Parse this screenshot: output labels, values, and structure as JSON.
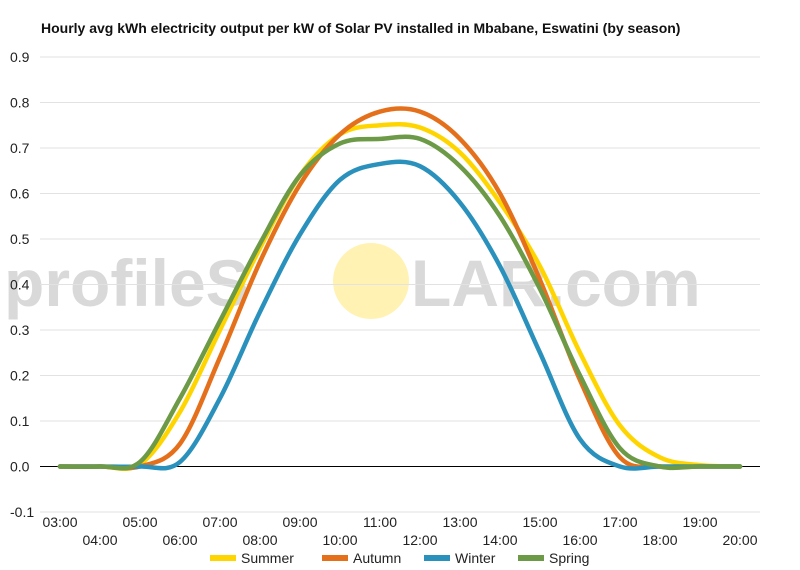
{
  "chart_data": {
    "type": "line",
    "title": "Hourly avg kWh electricity output per kW of Solar PV installed in Mbabane, Eswatini (by season)",
    "xlabel": "",
    "ylabel": "",
    "x_ticks": [
      "03:00",
      "04:00",
      "05:00",
      "06:00",
      "07:00",
      "08:00",
      "09:00",
      "10:00",
      "11:00",
      "12:00",
      "13:00",
      "14:00",
      "15:00",
      "16:00",
      "17:00",
      "18:00",
      "19:00",
      "20:00"
    ],
    "x_range": [
      "02:30",
      "20:30"
    ],
    "ylim": [
      -0.1,
      0.9
    ],
    "y_ticks": [
      "-0.1",
      "0.0",
      "0.1",
      "0.2",
      "0.3",
      "0.4",
      "0.5",
      "0.6",
      "0.7",
      "0.8",
      "0.9"
    ],
    "grid": "horizontal",
    "legend_position": "bottom",
    "series": [
      {
        "name": "Summer",
        "color": "#ffd500",
        "x": [
          "03:00",
          "04:00",
          "05:00",
          "06:00",
          "07:00",
          "08:00",
          "09:00",
          "10:00",
          "11:00",
          "12:00",
          "13:00",
          "14:00",
          "15:00",
          "16:00",
          "17:00",
          "18:00",
          "19:00",
          "20:00"
        ],
        "values": [
          0.0,
          0.0,
          0.005,
          0.12,
          0.3,
          0.48,
          0.64,
          0.73,
          0.75,
          0.745,
          0.69,
          0.58,
          0.44,
          0.25,
          0.09,
          0.02,
          0.003,
          0.0
        ]
      },
      {
        "name": "Autumn",
        "color": "#e5701c",
        "x": [
          "03:00",
          "04:00",
          "05:00",
          "06:00",
          "07:00",
          "08:00",
          "09:00",
          "10:00",
          "11:00",
          "12:00",
          "13:00",
          "14:00",
          "15:00",
          "16:00",
          "17:00",
          "18:00",
          "19:00",
          "20:00"
        ],
        "values": [
          0.0,
          0.0,
          0.0,
          0.05,
          0.24,
          0.45,
          0.62,
          0.73,
          0.78,
          0.78,
          0.72,
          0.6,
          0.41,
          0.19,
          0.02,
          0.0,
          0.0,
          0.0
        ]
      },
      {
        "name": "Winter",
        "color": "#2a91bd",
        "x": [
          "03:00",
          "04:00",
          "05:00",
          "06:00",
          "07:00",
          "08:00",
          "09:00",
          "10:00",
          "11:00",
          "12:00",
          "13:00",
          "14:00",
          "15:00",
          "16:00",
          "17:00",
          "18:00",
          "19:00",
          "20:00"
        ],
        "values": [
          0.0,
          0.0,
          0.0,
          0.01,
          0.15,
          0.34,
          0.51,
          0.63,
          0.665,
          0.66,
          0.58,
          0.44,
          0.25,
          0.06,
          0.0,
          0.0,
          0.0,
          0.0
        ]
      },
      {
        "name": "Spring",
        "color": "#6c9a46",
        "x": [
          "03:00",
          "04:00",
          "05:00",
          "06:00",
          "07:00",
          "08:00",
          "09:00",
          "10:00",
          "11:00",
          "12:00",
          "13:00",
          "14:00",
          "15:00",
          "16:00",
          "17:00",
          "18:00",
          "19:00",
          "20:00"
        ],
        "values": [
          0.0,
          0.0,
          0.01,
          0.15,
          0.32,
          0.49,
          0.64,
          0.71,
          0.72,
          0.72,
          0.66,
          0.55,
          0.39,
          0.2,
          0.04,
          0.0,
          0.0,
          0.0
        ]
      }
    ]
  },
  "watermark": {
    "left": "profileS",
    "right": "LAR.com",
    "sun_color": "#fff2b3"
  }
}
